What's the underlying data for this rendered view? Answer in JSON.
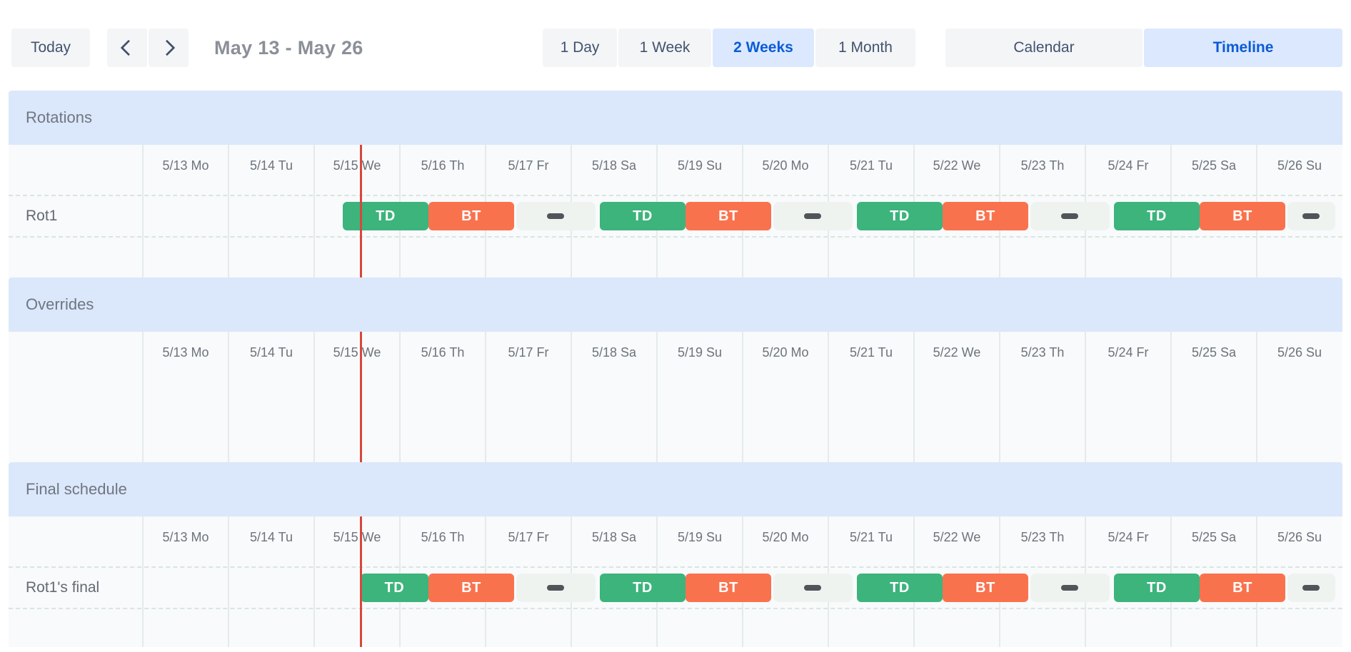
{
  "toolbar": {
    "today_label": "Today",
    "prev_icon": "chevron-left",
    "next_icon": "chevron-right",
    "range_title": "May 13 - May 26",
    "view_buttons": [
      {
        "label": "1 Day",
        "active": false
      },
      {
        "label": "1 Week",
        "active": false
      },
      {
        "label": "2 Weeks",
        "active": true
      },
      {
        "label": "1 Month",
        "active": false
      }
    ],
    "mode_buttons": [
      {
        "label": "Calendar",
        "active": false
      },
      {
        "label": "Timeline",
        "active": true
      }
    ]
  },
  "timeline": {
    "day_headers": [
      "5/13 Mo",
      "5/14 Tu",
      "5/15 We",
      "5/16 Th",
      "5/17 Fr",
      "5/18 Sa",
      "5/19 Su",
      "5/20 Mo",
      "5/21 Tu",
      "5/22 We",
      "5/23 Th",
      "5/24 Fr",
      "5/25 Sa",
      "5/26 Su"
    ],
    "now_day_fraction": 2.54,
    "sections": [
      {
        "title": "Rotations",
        "rows": [
          {
            "label": "Rot1",
            "shifts": [
              {
                "kind": "td",
                "label": "TD",
                "start": 2.3333,
                "end": 3.3333
              },
              {
                "kind": "bt",
                "label": "BT",
                "start": 3.3333,
                "end": 4.3333
              },
              {
                "kind": "gap",
                "start": 4.3333,
                "end": 5.3333
              },
              {
                "kind": "td",
                "label": "TD",
                "start": 5.3333,
                "end": 6.3333
              },
              {
                "kind": "bt",
                "label": "BT",
                "start": 6.3333,
                "end": 7.3333
              },
              {
                "kind": "gap",
                "start": 7.3333,
                "end": 8.3333
              },
              {
                "kind": "td",
                "label": "TD",
                "start": 8.3333,
                "end": 9.3333
              },
              {
                "kind": "bt",
                "label": "BT",
                "start": 9.3333,
                "end": 10.3333
              },
              {
                "kind": "gap",
                "start": 10.3333,
                "end": 11.3333
              },
              {
                "kind": "td",
                "label": "TD",
                "start": 11.3333,
                "end": 12.3333
              },
              {
                "kind": "bt",
                "label": "BT",
                "start": 12.3333,
                "end": 13.3333
              },
              {
                "kind": "gap",
                "start": 13.3333,
                "end": 14
              }
            ]
          }
        ]
      },
      {
        "title": "Overrides",
        "rows": []
      },
      {
        "title": "Final schedule",
        "rows": [
          {
            "label": "Rot1's final",
            "shifts": [
              {
                "kind": "td",
                "label": "TD",
                "start": 2.54,
                "end": 3.3333
              },
              {
                "kind": "bt",
                "label": "BT",
                "start": 3.3333,
                "end": 4.3333
              },
              {
                "kind": "gap",
                "start": 4.3333,
                "end": 5.3333
              },
              {
                "kind": "td",
                "label": "TD",
                "start": 5.3333,
                "end": 6.3333
              },
              {
                "kind": "bt",
                "label": "BT",
                "start": 6.3333,
                "end": 7.3333
              },
              {
                "kind": "gap",
                "start": 7.3333,
                "end": 8.3333
              },
              {
                "kind": "td",
                "label": "TD",
                "start": 8.3333,
                "end": 9.3333
              },
              {
                "kind": "bt",
                "label": "BT",
                "start": 9.3333,
                "end": 10.3333
              },
              {
                "kind": "gap",
                "start": 10.3333,
                "end": 11.3333
              },
              {
                "kind": "td",
                "label": "TD",
                "start": 11.3333,
                "end": 12.3333
              },
              {
                "kind": "bt",
                "label": "BT",
                "start": 12.3333,
                "end": 13.3333
              },
              {
                "kind": "gap",
                "start": 13.3333,
                "end": 14
              }
            ]
          }
        ]
      }
    ],
    "colors": {
      "shift_td": "#3cb47c",
      "shift_bt": "#f9724e",
      "gap_strip": "#eef3f0",
      "gap_dash": "#515559",
      "now_line": "#d8473c",
      "section_header_bg": "#dbe7fb",
      "active_button_bg": "#dce8fd",
      "active_button_text": "#0b5cd7"
    }
  }
}
